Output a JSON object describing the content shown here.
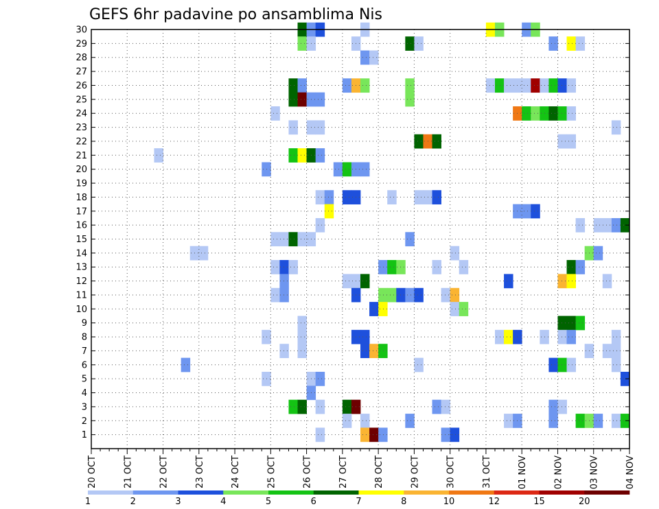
{
  "chart_data": {
    "type": "heatmap",
    "title": "GEFS 6hr padavine po ansamblima Nis",
    "xlabel": "",
    "ylabel": "",
    "x_ticks": [
      "20 OCT",
      "21 OCT",
      "22 OCT",
      "23 OCT",
      "24 OCT",
      "25 OCT",
      "26 OCT",
      "27 OCT",
      "28 OCT",
      "29 OCT",
      "30 OCT",
      "31 OCT",
      "01 NOV",
      "02 NOV",
      "03 NOV",
      "04 NOV"
    ],
    "x_range_days": [
      0,
      15
    ],
    "y_ticks": [
      1,
      2,
      3,
      4,
      5,
      6,
      7,
      8,
      9,
      10,
      11,
      12,
      13,
      14,
      15,
      16,
      17,
      18,
      19,
      20,
      21,
      22,
      23,
      24,
      25,
      26,
      27,
      28,
      29,
      30
    ],
    "y_range": [
      0,
      30
    ],
    "grid": true,
    "time_step_hours": 6,
    "colorbar": {
      "labels": [
        "1",
        "2",
        "3",
        "4",
        "5",
        "6",
        "7",
        "8",
        "10",
        "12",
        "15",
        "20"
      ],
      "colors": [
        "#b4c8f5",
        "#6e96f0",
        "#1e50dc",
        "#78e65a",
        "#14c314",
        "#006400",
        "#ffff00",
        "#fab432",
        "#f07814",
        "#dc2814",
        "#a00000",
        "#6e0000"
      ]
    },
    "cells": [
      [
        30,
        24,
        6
      ],
      [
        30,
        25,
        2
      ],
      [
        30,
        26,
        3
      ],
      [
        30,
        31,
        1
      ],
      [
        30,
        45,
        7
      ],
      [
        30,
        46,
        4
      ],
      [
        30,
        49,
        2
      ],
      [
        30,
        50,
        4
      ],
      [
        29,
        24,
        4
      ],
      [
        29,
        25,
        1
      ],
      [
        29,
        30,
        1
      ],
      [
        29,
        36,
        6
      ],
      [
        29,
        37,
        1
      ],
      [
        29,
        52,
        2
      ],
      [
        29,
        54,
        7
      ],
      [
        29,
        55,
        1
      ],
      [
        28,
        31,
        2
      ],
      [
        28,
        32,
        1
      ],
      [
        26,
        23,
        6
      ],
      [
        26,
        24,
        2
      ],
      [
        26,
        29,
        2
      ],
      [
        26,
        30,
        8
      ],
      [
        26,
        31,
        4
      ],
      [
        26,
        36,
        4
      ],
      [
        26,
        45,
        1
      ],
      [
        26,
        46,
        5
      ],
      [
        26,
        47,
        1
      ],
      [
        26,
        48,
        1
      ],
      [
        26,
        49,
        1
      ],
      [
        26,
        50,
        11
      ],
      [
        26,
        51,
        1
      ],
      [
        26,
        52,
        5
      ],
      [
        26,
        53,
        3
      ],
      [
        26,
        54,
        1
      ],
      [
        25,
        23,
        6
      ],
      [
        25,
        24,
        12
      ],
      [
        25,
        25,
        2
      ],
      [
        25,
        26,
        2
      ],
      [
        25,
        36,
        4
      ],
      [
        24,
        21,
        1
      ],
      [
        24,
        48,
        9
      ],
      [
        24,
        49,
        5
      ],
      [
        24,
        50,
        4
      ],
      [
        24,
        51,
        5
      ],
      [
        24,
        52,
        6
      ],
      [
        24,
        53,
        5
      ],
      [
        24,
        54,
        1
      ],
      [
        23,
        23,
        1
      ],
      [
        23,
        25,
        1
      ],
      [
        23,
        26,
        1
      ],
      [
        23,
        59,
        1
      ],
      [
        22,
        37,
        6
      ],
      [
        22,
        38,
        9
      ],
      [
        22,
        39,
        6
      ],
      [
        22,
        53,
        1
      ],
      [
        22,
        54,
        1
      ],
      [
        21,
        8,
        1
      ],
      [
        21,
        23,
        5
      ],
      [
        21,
        24,
        7
      ],
      [
        21,
        25,
        6
      ],
      [
        21,
        26,
        2
      ],
      [
        20,
        20,
        2
      ],
      [
        20,
        28,
        2
      ],
      [
        20,
        29,
        5
      ],
      [
        20,
        30,
        2
      ],
      [
        20,
        31,
        2
      ],
      [
        18,
        26,
        1
      ],
      [
        18,
        27,
        2
      ],
      [
        18,
        29,
        3
      ],
      [
        18,
        30,
        3
      ],
      [
        18,
        34,
        1
      ],
      [
        18,
        37,
        1
      ],
      [
        18,
        38,
        1
      ],
      [
        18,
        39,
        3
      ],
      [
        17,
        27,
        7
      ],
      [
        17,
        48,
        2
      ],
      [
        17,
        49,
        2
      ],
      [
        17,
        50,
        3
      ],
      [
        16,
        26,
        1
      ],
      [
        16,
        55,
        1
      ],
      [
        16,
        57,
        1
      ],
      [
        16,
        58,
        1
      ],
      [
        16,
        59,
        2
      ],
      [
        16,
        60,
        6
      ],
      [
        15,
        21,
        1
      ],
      [
        15,
        22,
        1
      ],
      [
        15,
        23,
        6
      ],
      [
        15,
        24,
        1
      ],
      [
        15,
        25,
        1
      ],
      [
        15,
        36,
        2
      ],
      [
        14,
        12,
        1
      ],
      [
        14,
        13,
        1
      ],
      [
        14,
        41,
        1
      ],
      [
        14,
        56,
        4
      ],
      [
        14,
        57,
        2
      ],
      [
        13,
        21,
        1
      ],
      [
        13,
        22,
        3
      ],
      [
        13,
        23,
        1
      ],
      [
        13,
        33,
        2
      ],
      [
        13,
        34,
        5
      ],
      [
        13,
        35,
        4
      ],
      [
        13,
        39,
        1
      ],
      [
        13,
        42,
        1
      ],
      [
        13,
        54,
        6
      ],
      [
        13,
        55,
        2
      ],
      [
        12,
        22,
        2
      ],
      [
        12,
        29,
        1
      ],
      [
        12,
        30,
        1
      ],
      [
        12,
        31,
        6
      ],
      [
        12,
        47,
        3
      ],
      [
        12,
        53,
        8
      ],
      [
        12,
        54,
        7
      ],
      [
        12,
        58,
        1
      ],
      [
        11,
        21,
        1
      ],
      [
        11,
        22,
        2
      ],
      [
        11,
        30,
        3
      ],
      [
        11,
        33,
        4
      ],
      [
        11,
        34,
        4
      ],
      [
        11,
        35,
        3
      ],
      [
        11,
        36,
        2
      ],
      [
        11,
        37,
        3
      ],
      [
        11,
        40,
        1
      ],
      [
        11,
        41,
        8
      ],
      [
        10,
        32,
        3
      ],
      [
        10,
        33,
        7
      ],
      [
        10,
        41,
        1
      ],
      [
        10,
        42,
        4
      ],
      [
        9,
        24,
        1
      ],
      [
        9,
        53,
        6
      ],
      [
        9,
        54,
        6
      ],
      [
        9,
        55,
        5
      ],
      [
        8,
        20,
        1
      ],
      [
        8,
        24,
        1
      ],
      [
        8,
        30,
        3
      ],
      [
        8,
        31,
        3
      ],
      [
        8,
        46,
        1
      ],
      [
        8,
        47,
        7
      ],
      [
        8,
        48,
        3
      ],
      [
        8,
        51,
        1
      ],
      [
        8,
        53,
        1
      ],
      [
        8,
        54,
        2
      ],
      [
        8,
        59,
        1
      ],
      [
        7,
        22,
        1
      ],
      [
        7,
        24,
        1
      ],
      [
        7,
        31,
        3
      ],
      [
        7,
        32,
        8
      ],
      [
        7,
        33,
        5
      ],
      [
        7,
        56,
        1
      ],
      [
        7,
        58,
        1
      ],
      [
        7,
        59,
        1
      ],
      [
        6,
        11,
        2
      ],
      [
        6,
        37,
        1
      ],
      [
        6,
        52,
        3
      ],
      [
        6,
        53,
        5
      ],
      [
        6,
        54,
        1
      ],
      [
        6,
        59,
        1
      ],
      [
        5,
        20,
        1
      ],
      [
        5,
        25,
        1
      ],
      [
        5,
        26,
        2
      ],
      [
        5,
        60,
        3
      ],
      [
        4,
        25,
        2
      ],
      [
        3,
        23,
        5
      ],
      [
        3,
        24,
        6
      ],
      [
        3,
        26,
        1
      ],
      [
        3,
        29,
        6
      ],
      [
        3,
        30,
        12
      ],
      [
        3,
        39,
        2
      ],
      [
        3,
        40,
        1
      ],
      [
        3,
        52,
        2
      ],
      [
        3,
        53,
        1
      ],
      [
        2,
        29,
        1
      ],
      [
        2,
        31,
        1
      ],
      [
        2,
        36,
        2
      ],
      [
        2,
        47,
        1
      ],
      [
        2,
        48,
        2
      ],
      [
        2,
        52,
        2
      ],
      [
        2,
        55,
        5
      ],
      [
        2,
        56,
        4
      ],
      [
        2,
        57,
        2
      ],
      [
        2,
        59,
        1
      ],
      [
        2,
        60,
        5
      ],
      [
        1,
        26,
        1
      ],
      [
        1,
        31,
        8
      ],
      [
        1,
        32,
        12
      ],
      [
        1,
        33,
        2
      ],
      [
        1,
        40,
        2
      ],
      [
        1,
        41,
        3
      ]
    ]
  }
}
